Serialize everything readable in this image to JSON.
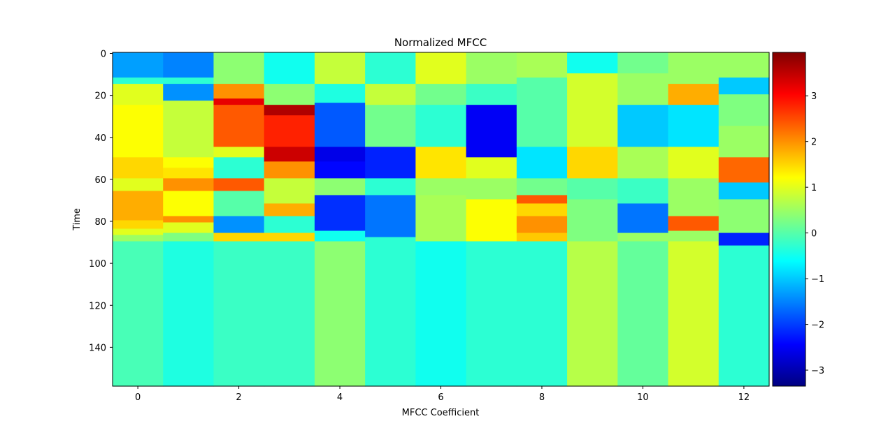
{
  "chart_data": {
    "type": "heatmap",
    "title": "Normalized MFCC",
    "xlabel": "MFCC Coefficient",
    "ylabel": "Time",
    "n_coefficients": 13,
    "n_frames": 159,
    "x_ticks": [
      0,
      2,
      4,
      6,
      8,
      10,
      12
    ],
    "y_ticks": [
      0,
      20,
      40,
      60,
      80,
      100,
      120,
      140
    ],
    "x_tick_labels": [
      "0",
      "2",
      "4",
      "6",
      "8",
      "10",
      "12"
    ],
    "y_tick_labels": [
      "0",
      "20",
      "40",
      "60",
      "80",
      "100",
      "120",
      "140"
    ],
    "colorbar": {
      "min": -3.35,
      "max": 3.95,
      "ticks": [
        -3,
        -2,
        -1,
        0,
        1,
        2,
        3
      ],
      "tick_labels": [
        "−3",
        "−2",
        "−1",
        "0",
        "1",
        "2",
        "3"
      ]
    },
    "colormap": "jet",
    "columns": [
      {
        "coefficient": 0,
        "segments": [
          [
            0,
            12,
            -1.3
          ],
          [
            12,
            15,
            -0.3
          ],
          [
            15,
            25,
            1.0
          ],
          [
            25,
            45,
            1.2
          ],
          [
            45,
            50,
            1.2
          ],
          [
            50,
            60,
            1.5
          ],
          [
            60,
            66,
            1.0
          ],
          [
            66,
            80,
            1.8
          ],
          [
            80,
            84,
            1.5
          ],
          [
            84,
            87,
            1.0
          ],
          [
            87,
            90,
            0.5
          ],
          [
            90,
            159,
            -0.1
          ]
        ]
      },
      {
        "coefficient": 1,
        "segments": [
          [
            0,
            12,
            -1.5
          ],
          [
            12,
            15,
            -0.3
          ],
          [
            15,
            23,
            -1.4
          ],
          [
            23,
            50,
            0.8
          ],
          [
            50,
            55,
            1.2
          ],
          [
            55,
            60,
            1.4
          ],
          [
            60,
            66,
            2.0
          ],
          [
            66,
            78,
            1.2
          ],
          [
            78,
            81,
            2.0
          ],
          [
            81,
            86,
            1.0
          ],
          [
            86,
            90,
            0.3
          ],
          [
            90,
            159,
            -0.4
          ]
        ]
      },
      {
        "coefficient": 2,
        "segments": [
          [
            0,
            15,
            0.4
          ],
          [
            15,
            22,
            2.0
          ],
          [
            22,
            25,
            3.2
          ],
          [
            25,
            45,
            2.4
          ],
          [
            45,
            50,
            1.0
          ],
          [
            50,
            60,
            -0.3
          ],
          [
            60,
            66,
            2.4
          ],
          [
            66,
            78,
            0.0
          ],
          [
            78,
            86,
            -1.4
          ],
          [
            86,
            90,
            1.5
          ],
          [
            90,
            159,
            -0.2
          ]
        ]
      },
      {
        "coefficient": 3,
        "segments": [
          [
            0,
            15,
            -0.5
          ],
          [
            15,
            25,
            0.4
          ],
          [
            25,
            30,
            3.6
          ],
          [
            30,
            45,
            2.8
          ],
          [
            45,
            52,
            3.4
          ],
          [
            52,
            60,
            2.0
          ],
          [
            60,
            72,
            0.8
          ],
          [
            72,
            78,
            1.8
          ],
          [
            78,
            86,
            -0.3
          ],
          [
            86,
            90,
            1.5
          ],
          [
            90,
            159,
            -0.2
          ]
        ]
      },
      {
        "coefficient": 4,
        "segments": [
          [
            0,
            15,
            0.8
          ],
          [
            15,
            24,
            -0.4
          ],
          [
            24,
            45,
            -1.8
          ],
          [
            45,
            52,
            -2.6
          ],
          [
            52,
            60,
            -2.4
          ],
          [
            60,
            68,
            0.4
          ],
          [
            68,
            85,
            -2.1
          ],
          [
            85,
            90,
            -0.5
          ],
          [
            90,
            159,
            0.4
          ]
        ]
      },
      {
        "coefficient": 5,
        "segments": [
          [
            0,
            15,
            -0.3
          ],
          [
            15,
            25,
            0.8
          ],
          [
            25,
            45,
            0.2
          ],
          [
            45,
            60,
            -2.2
          ],
          [
            60,
            68,
            -0.3
          ],
          [
            68,
            88,
            -1.6
          ],
          [
            88,
            159,
            -0.3
          ]
        ]
      },
      {
        "coefficient": 6,
        "segments": [
          [
            0,
            15,
            1.0
          ],
          [
            15,
            25,
            0.2
          ],
          [
            25,
            45,
            -0.3
          ],
          [
            45,
            60,
            1.4
          ],
          [
            60,
            68,
            0.5
          ],
          [
            68,
            90,
            0.6
          ],
          [
            90,
            159,
            -0.5
          ]
        ]
      },
      {
        "coefficient": 7,
        "segments": [
          [
            0,
            15,
            0.5
          ],
          [
            15,
            25,
            -0.2
          ],
          [
            25,
            50,
            -2.5
          ],
          [
            50,
            60,
            1.0
          ],
          [
            60,
            70,
            0.5
          ],
          [
            70,
            90,
            1.2
          ],
          [
            90,
            159,
            -0.3
          ]
        ]
      },
      {
        "coefficient": 8,
        "segments": [
          [
            0,
            12,
            0.6
          ],
          [
            12,
            45,
            0.0
          ],
          [
            45,
            60,
            -0.8
          ],
          [
            60,
            68,
            0.2
          ],
          [
            68,
            72,
            2.4
          ],
          [
            72,
            78,
            1.5
          ],
          [
            78,
            86,
            2.0
          ],
          [
            86,
            90,
            1.6
          ],
          [
            90,
            159,
            -0.3
          ]
        ]
      },
      {
        "coefficient": 9,
        "segments": [
          [
            0,
            10,
            -0.5
          ],
          [
            10,
            45,
            0.9
          ],
          [
            45,
            60,
            1.5
          ],
          [
            60,
            70,
            0.0
          ],
          [
            70,
            90,
            0.3
          ],
          [
            90,
            159,
            0.7
          ]
        ]
      },
      {
        "coefficient": 10,
        "segments": [
          [
            0,
            10,
            0.2
          ],
          [
            10,
            25,
            0.5
          ],
          [
            25,
            45,
            -1.0
          ],
          [
            45,
            60,
            0.6
          ],
          [
            60,
            72,
            -0.2
          ],
          [
            72,
            86,
            -1.6
          ],
          [
            86,
            90,
            0.5
          ],
          [
            90,
            159,
            0.1
          ]
        ]
      },
      {
        "coefficient": 11,
        "segments": [
          [
            0,
            15,
            0.5
          ],
          [
            15,
            25,
            1.8
          ],
          [
            25,
            45,
            -0.8
          ],
          [
            45,
            60,
            1.0
          ],
          [
            60,
            78,
            0.5
          ],
          [
            78,
            85,
            2.4
          ],
          [
            85,
            90,
            0.5
          ],
          [
            90,
            159,
            0.9
          ]
        ]
      },
      {
        "coefficient": 12,
        "segments": [
          [
            0,
            12,
            0.5
          ],
          [
            12,
            20,
            -1.0
          ],
          [
            20,
            35,
            0.3
          ],
          [
            35,
            50,
            0.5
          ],
          [
            50,
            62,
            2.3
          ],
          [
            62,
            70,
            -1.0
          ],
          [
            70,
            86,
            0.4
          ],
          [
            86,
            92,
            -2.2
          ],
          [
            92,
            159,
            -0.3
          ]
        ]
      }
    ]
  }
}
